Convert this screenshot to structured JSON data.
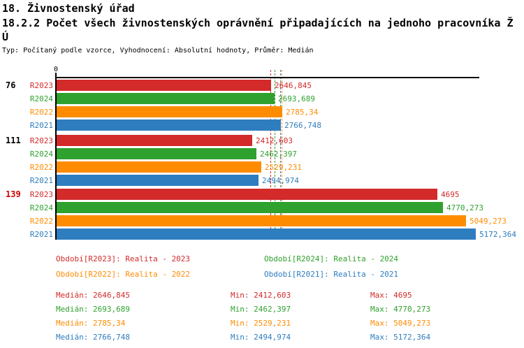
{
  "header": {
    "title_line1": "18. Živnostenský úřad",
    "title_line2a": "18.2.2 Počet všech živnostenských oprávnění připadajících na jednoho pracovníka Ž",
    "title_line2b": "Ú",
    "meta": "Typ: Počítaný podle vzorce, Vyhodnocení: Absolutní hodnoty, Průměr: Medián"
  },
  "chart_data": {
    "type": "bar",
    "orientation": "horizontal",
    "x_axis": {
      "zero_label": "0",
      "max_value": 5172.364,
      "xlim": [
        0,
        5172.364
      ],
      "grid": false
    },
    "series_order": [
      "R2023",
      "R2024",
      "R2022",
      "R2021"
    ],
    "series_colors": {
      "R2023": "#d32a2a",
      "R2024": "#2fa12e",
      "R2022": "#ff8c00",
      "R2021": "#2e7dbf"
    },
    "groups": [
      {
        "label": "76",
        "label_color": "#000000",
        "bars": [
          {
            "series": "R2023",
            "value": 2646.845,
            "display": "2646,845"
          },
          {
            "series": "R2024",
            "value": 2693.689,
            "display": "2693,689"
          },
          {
            "series": "R2022",
            "value": 2785.34,
            "display": "2785,34"
          },
          {
            "series": "R2021",
            "value": 2766.748,
            "display": "2766,748"
          }
        ]
      },
      {
        "label": "111",
        "label_color": "#000000",
        "bars": [
          {
            "series": "R2023",
            "value": 2412.603,
            "display": "2412,603"
          },
          {
            "series": "R2024",
            "value": 2462.397,
            "display": "2462,397"
          },
          {
            "series": "R2022",
            "value": 2529.231,
            "display": "2529,231"
          },
          {
            "series": "R2021",
            "value": 2494.974,
            "display": "2494,974"
          }
        ]
      },
      {
        "label": "139",
        "label_color": "#cc0000",
        "bars": [
          {
            "series": "R2023",
            "value": 4695,
            "display": "4695"
          },
          {
            "series": "R2024",
            "value": 4770.273,
            "display": "4770,273"
          },
          {
            "series": "R2022",
            "value": 5049.273,
            "display": "5049,273"
          },
          {
            "series": "R2021",
            "value": 5172.364,
            "display": "5172,364"
          }
        ]
      }
    ],
    "medians": {
      "R2023": 2646.845,
      "R2024": 2693.689,
      "R2022": 2785.34,
      "R2021": 2766.748
    }
  },
  "legend": {
    "items": [
      {
        "series": "R2023",
        "text": "Období[R2023]: Realita - 2023"
      },
      {
        "series": "R2024",
        "text": "Období[R2024]: Realita - 2024"
      },
      {
        "series": "R2022",
        "text": "Období[R2022]: Realita - 2022"
      },
      {
        "series": "R2021",
        "text": "Období[R2021]: Realita - 2021"
      }
    ]
  },
  "stats": {
    "labels": {
      "median": "Medián",
      "min": "Min",
      "max": "Max"
    },
    "rows": [
      {
        "series": "R2023",
        "median": "2646,845",
        "min": "2412,603",
        "max": "4695"
      },
      {
        "series": "R2024",
        "median": "2693,689",
        "min": "2462,397",
        "max": "4770,273"
      },
      {
        "series": "R2022",
        "median": "2785,34",
        "min": "2529,231",
        "max": "5049,273"
      },
      {
        "series": "R2021",
        "median": "2766,748",
        "min": "2494,974",
        "max": "5172,364"
      }
    ]
  }
}
